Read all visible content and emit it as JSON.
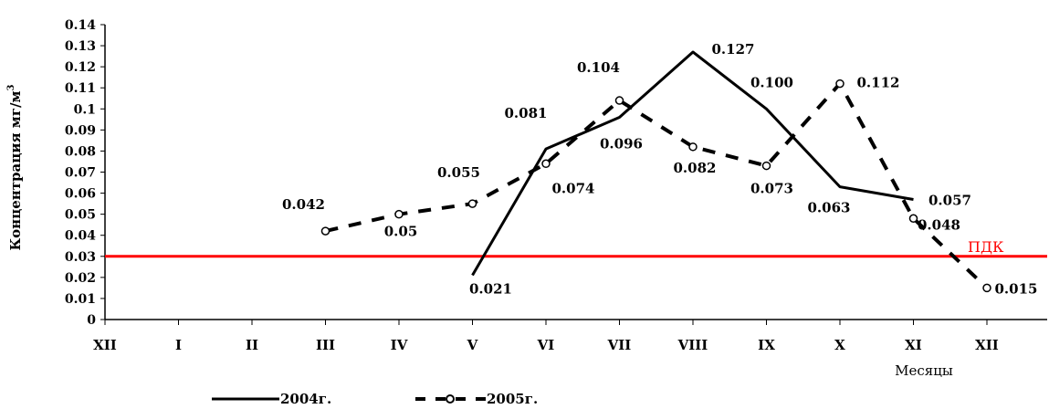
{
  "chart_data": {
    "type": "line",
    "title": "",
    "xlabel": "Месяцы",
    "ylabel": "Концентрация мг/м",
    "ylabel_sup": "3",
    "categories": [
      "XII",
      "I",
      "II",
      "III",
      "IV",
      "V",
      "VI",
      "VII",
      "VIII",
      "IX",
      "X",
      "XI",
      "XII"
    ],
    "ylim": [
      0,
      0.14
    ],
    "yticks": [
      "0",
      "0.01",
      "0.02",
      "0.03",
      "0.04",
      "0.05",
      "0.06",
      "0.07",
      "0.08",
      "0.09",
      "0.1",
      "0.11",
      "0.12",
      "0.13",
      "0.14"
    ],
    "grid": false,
    "legend_position": "bottom",
    "series": [
      {
        "name": "2004г.",
        "style": "solid",
        "color": "#000000",
        "points": [
          {
            "x": "V",
            "y": 0.021,
            "label": "0.021"
          },
          {
            "x": "VI",
            "y": 0.081,
            "label": "0.081"
          },
          {
            "x": "VII",
            "y": 0.096,
            "label": "0.096"
          },
          {
            "x": "VIII",
            "y": 0.127,
            "label": "0.127"
          },
          {
            "x": "IX",
            "y": 0.1,
            "label": "0.100"
          },
          {
            "x": "X",
            "y": 0.063,
            "label": "0.063"
          },
          {
            "x": "XI",
            "y": 0.057,
            "label": "0.057"
          }
        ]
      },
      {
        "name": "2005г.",
        "style": "dashed-circle",
        "color": "#000000",
        "points": [
          {
            "x": "III",
            "y": 0.042,
            "label": "0.042"
          },
          {
            "x": "IV",
            "y": 0.05,
            "label": "0.05"
          },
          {
            "x": "V",
            "y": 0.055,
            "label": "0.055"
          },
          {
            "x": "VI",
            "y": 0.074,
            "label": "0.074"
          },
          {
            "x": "VII",
            "y": 0.104,
            "label": "0.104"
          },
          {
            "x": "VIII",
            "y": 0.082,
            "label": "0.082"
          },
          {
            "x": "IX",
            "y": 0.073,
            "label": "0.073"
          },
          {
            "x": "X",
            "y": 0.112,
            "label": "0.112"
          },
          {
            "x": "XI",
            "y": 0.048,
            "label": "0.048"
          },
          {
            "x": "XII",
            "y": 0.015,
            "label": "0.015"
          }
        ]
      }
    ],
    "reference_line": {
      "y": 0.03,
      "label": "ПДК",
      "color": "#ff0000"
    }
  }
}
